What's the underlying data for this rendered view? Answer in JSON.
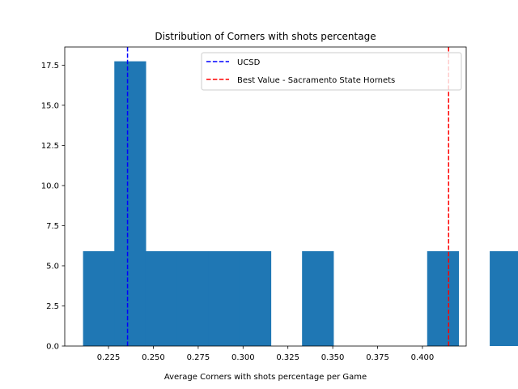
{
  "chart_data": {
    "type": "histogram",
    "title": "Distribution of Corners with shots percentage",
    "xlabel": "Average Corners with shots percentage per Game",
    "ylabel": "",
    "xlim": [
      0.2006,
      0.4244
    ],
    "ylim": [
      0,
      18.63
    ],
    "bin_start": 0.2108,
    "bin_width": 0.01744,
    "bin_heights": [
      5.91,
      17.74,
      5.91,
      5.91,
      5.91,
      5.91,
      0,
      5.91,
      0,
      0,
      0,
      5.91,
      0,
      5.91
    ],
    "x_ticks": [
      {
        "value": 0.225,
        "label": "0.225"
      },
      {
        "value": 0.25,
        "label": "0.250"
      },
      {
        "value": 0.275,
        "label": "0.275"
      },
      {
        "value": 0.3,
        "label": "0.300"
      },
      {
        "value": 0.325,
        "label": "0.325"
      },
      {
        "value": 0.35,
        "label": "0.350"
      },
      {
        "value": 0.375,
        "label": "0.375"
      },
      {
        "value": 0.4,
        "label": "0.400"
      }
    ],
    "y_ticks": [
      {
        "value": 0.0,
        "label": "0.0"
      },
      {
        "value": 2.5,
        "label": "2.5"
      },
      {
        "value": 5.0,
        "label": "5.0"
      },
      {
        "value": 7.5,
        "label": "7.5"
      },
      {
        "value": 10.0,
        "label": "10.0"
      },
      {
        "value": 12.5,
        "label": "12.5"
      },
      {
        "value": 15.0,
        "label": "15.0"
      },
      {
        "value": 17.5,
        "label": "17.5"
      }
    ],
    "reference_lines": [
      {
        "name": "UCSD",
        "x": 0.2356,
        "color": "#0000ff",
        "style": "dashed"
      },
      {
        "name": "Best Value - Sacramento State Hornets",
        "x": 0.4146,
        "color": "#ff0000",
        "style": "dashed"
      }
    ],
    "bar_color": "#1f77b4",
    "grid": false,
    "legend_position": "top-right"
  }
}
